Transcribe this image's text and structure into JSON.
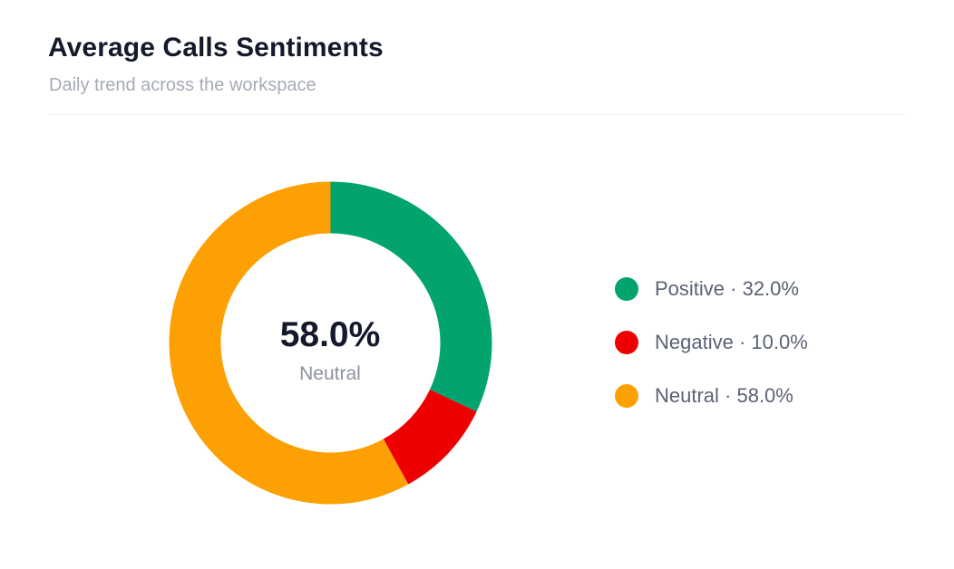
{
  "header": {
    "title": "Average Calls Sentiments",
    "subtitle": "Daily trend across the workspace"
  },
  "center": {
    "value": "58.0%",
    "label": "Neutral"
  },
  "legend": [
    {
      "text": "Positive · 32.0%"
    },
    {
      "text": "Negative · 10.0%"
    },
    {
      "text": "Neutral · 58.0%"
    }
  ],
  "chart_data": {
    "type": "pie",
    "title": "Average Calls Sentiments",
    "subtitle": "Daily trend across the workspace",
    "donut": true,
    "categories": [
      "Positive",
      "Negative",
      "Neutral"
    ],
    "values": [
      32.0,
      10.0,
      58.0
    ],
    "unit": "%",
    "colors": [
      "#02a36e",
      "#ee0000",
      "#fca003"
    ],
    "legend_position": "right",
    "center_value": "58.0%",
    "center_label": "Neutral"
  }
}
